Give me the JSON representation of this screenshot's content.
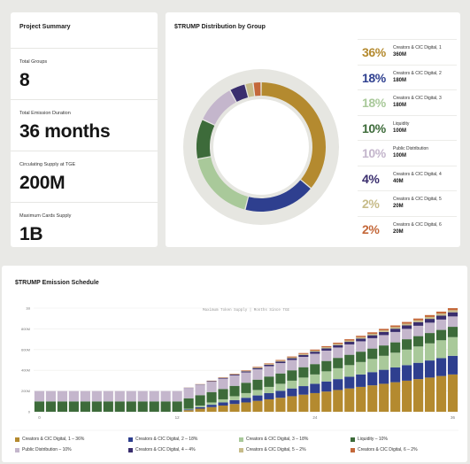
{
  "summary": {
    "title": "Project Summary",
    "stats": [
      {
        "label": "Total Groups",
        "value": "8"
      },
      {
        "label": "Total Emission Duration",
        "value": "36 months"
      },
      {
        "label": "Circulating Supply at TGE",
        "value": "200M"
      },
      {
        "label": "Maximum Cards Supply",
        "value": "1B"
      }
    ]
  },
  "distribution": {
    "title": "$TRUMP Distribution by Group",
    "legend": [
      {
        "pct": "36%",
        "name": "Creators & CIC Digital, 1",
        "amount": "360M"
      },
      {
        "pct": "18%",
        "name": "Creators & CIC Digital, 2",
        "amount": "180M"
      },
      {
        "pct": "18%",
        "name": "Creators & CIC Digital, 3",
        "amount": "180M"
      },
      {
        "pct": "10%",
        "name": "Liquidity",
        "amount": "100M"
      },
      {
        "pct": "10%",
        "name": "Public Distribution",
        "amount": "100M"
      },
      {
        "pct": "4%",
        "name": "Creators & CIC Digital, 4",
        "amount": "40M"
      },
      {
        "pct": "2%",
        "name": "Creators & CIC Digital, 5",
        "amount": "20M"
      },
      {
        "pct": "2%",
        "name": "Creators & CIC Digital, 6",
        "amount": "20M"
      }
    ]
  },
  "emission": {
    "title": "$TRUMP Emission Schedule",
    "bottom_legend": [
      "Creators & CIC Digital, 1 – 36%",
      "Creators & CIC Digital, 2 – 18%",
      "Creators & CIC Digital, 3 – 18%",
      "Liquidity – 10%",
      "Public Distribution – 10%",
      "Creators & CIC Digital, 4 – 4%",
      "Creators & CIC Digital, 5 – 2%",
      "Creators & CIC Digital, 6 – 2%"
    ]
  },
  "colors": [
    "#b48a2f",
    "#2e3f8f",
    "#a9c99a",
    "#3d6b3a",
    "#c4b6cc",
    "#3a2e6e",
    "#c7bc8a",
    "#c4683a"
  ],
  "chart_data": [
    {
      "type": "pie",
      "title": "$TRUMP Distribution by Group",
      "labels": [
        "Creators & CIC Digital, 1",
        "Creators & CIC Digital, 2",
        "Creators & CIC Digital, 3",
        "Liquidity",
        "Public Distribution",
        "Creators & CIC Digital, 4",
        "Creators & CIC Digital, 5",
        "Creators & CIC Digital, 6"
      ],
      "values": [
        36,
        18,
        18,
        10,
        10,
        4,
        2,
        2
      ],
      "amounts_M": [
        360,
        180,
        180,
        100,
        100,
        40,
        20,
        20
      ],
      "legend": "right"
    },
    {
      "type": "bar",
      "stacked": true,
      "title": "$TRUMP Emission Schedule",
      "subtitle": "Maximum Token Supply | Months Since TGE",
      "x": [
        0,
        1,
        2,
        3,
        4,
        5,
        6,
        7,
        8,
        9,
        10,
        11,
        12,
        13,
        14,
        15,
        16,
        17,
        18,
        19,
        20,
        21,
        22,
        23,
        24,
        25,
        26,
        27,
        28,
        29,
        30,
        31,
        32,
        33,
        34,
        35,
        36
      ],
      "xticks": [
        "0",
        "12",
        "24",
        "36"
      ],
      "yticks": [
        "1B",
        "800M",
        "600M",
        "400M",
        "200M",
        "0"
      ],
      "ylim": [
        0,
        1000
      ],
      "y_unit": "M",
      "series": [
        {
          "name": "Creators & CIC Digital, 1",
          "values": [
            0,
            0,
            0,
            0,
            0,
            0,
            0,
            0,
            0,
            0,
            0,
            0,
            0,
            15,
            30,
            45,
            60,
            75,
            90,
            105,
            120,
            135,
            150,
            165,
            180,
            195,
            210,
            225,
            240,
            255,
            270,
            285,
            300,
            315,
            330,
            345,
            360
          ]
        },
        {
          "name": "Creators & CIC Digital, 2",
          "values": [
            0,
            0,
            0,
            0,
            0,
            0,
            0,
            0,
            0,
            0,
            0,
            0,
            0,
            7.5,
            15,
            22.5,
            30,
            37.5,
            45,
            52.5,
            60,
            67.5,
            75,
            82.5,
            90,
            97.5,
            105,
            112.5,
            120,
            127.5,
            135,
            142.5,
            150,
            157.5,
            165,
            172.5,
            180
          ]
        },
        {
          "name": "Creators & CIC Digital, 3",
          "values": [
            0,
            0,
            0,
            0,
            0,
            0,
            0,
            0,
            0,
            0,
            0,
            0,
            0,
            7.5,
            15,
            22.5,
            30,
            37.5,
            45,
            52.5,
            60,
            67.5,
            75,
            82.5,
            90,
            97.5,
            105,
            112.5,
            120,
            127.5,
            135,
            142.5,
            150,
            157.5,
            165,
            172.5,
            180
          ]
        },
        {
          "name": "Liquidity",
          "values": [
            100,
            100,
            100,
            100,
            100,
            100,
            100,
            100,
            100,
            100,
            100,
            100,
            100,
            100,
            100,
            100,
            100,
            100,
            100,
            100,
            100,
            100,
            100,
            100,
            100,
            100,
            100,
            100,
            100,
            100,
            100,
            100,
            100,
            100,
            100,
            100,
            100
          ]
        },
        {
          "name": "Public Distribution",
          "values": [
            100,
            100,
            100,
            100,
            100,
            100,
            100,
            100,
            100,
            100,
            100,
            100,
            100,
            100,
            100,
            100,
            100,
            100,
            100,
            100,
            100,
            100,
            100,
            100,
            100,
            100,
            100,
            100,
            100,
            100,
            100,
            100,
            100,
            100,
            100,
            100,
            100
          ]
        },
        {
          "name": "Creators & CIC Digital, 4",
          "values": [
            0,
            0,
            0,
            0,
            0,
            0,
            0,
            0,
            0,
            0,
            0,
            0,
            0,
            1.7,
            3.3,
            5,
            6.7,
            8.3,
            10,
            11.7,
            13.3,
            15,
            16.7,
            18.3,
            20,
            21.7,
            23.3,
            25,
            26.7,
            28.3,
            30,
            31.7,
            33.3,
            35,
            36.7,
            38.3,
            40
          ]
        },
        {
          "name": "Creators & CIC Digital, 5",
          "values": [
            0,
            0,
            0,
            0,
            0,
            0,
            0,
            0,
            0,
            0,
            0,
            0,
            0,
            0.8,
            1.7,
            2.5,
            3.3,
            4.2,
            5,
            5.8,
            6.7,
            7.5,
            8.3,
            9.2,
            10,
            10.8,
            11.7,
            12.5,
            13.3,
            14.2,
            15,
            15.8,
            16.7,
            17.5,
            18.3,
            19.2,
            20
          ]
        },
        {
          "name": "Creators & CIC Digital, 6",
          "values": [
            0,
            0,
            0,
            0,
            0,
            0,
            0,
            0,
            0,
            0,
            0,
            0,
            0,
            0.8,
            1.7,
            2.5,
            3.3,
            4.2,
            5,
            5.8,
            6.7,
            7.5,
            8.3,
            9.2,
            10,
            10.8,
            11.7,
            12.5,
            13.3,
            14.2,
            15,
            15.8,
            16.7,
            17.5,
            18.3,
            19.2,
            20
          ]
        }
      ],
      "legend": "bottom",
      "grid": true
    }
  ]
}
